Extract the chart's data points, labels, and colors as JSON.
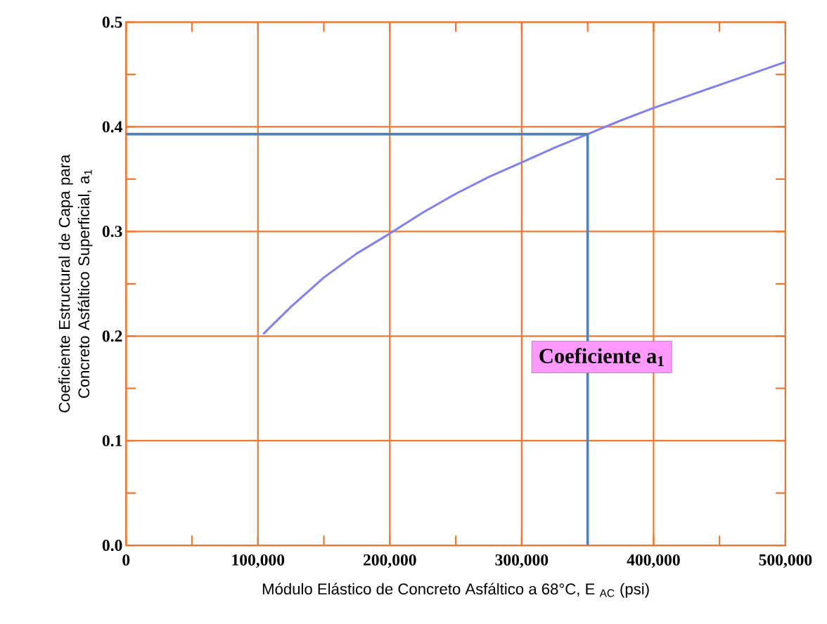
{
  "chart_data": {
    "type": "line",
    "xlabel": "Módulo Elástico de Concreto Asfáltico a 68°C, E $_{AC}$ (psi)",
    "ylabel": "Coeficiente Estructural de Capa para Concreto Asfáltico Superficial, a$_{1}$",
    "annotations": [
      "**Coeficiente a$_{1}$**"
    ],
    "series": [
      {
        "x": [
          104000,
          125000,
          150000,
          175000,
          200000,
          225000,
          250000,
          275000,
          300000,
          325000,
          350000,
          375000,
          400000,
          450000,
          500000
        ],
        "values": [
          0.202,
          0.228,
          0.256,
          0.279,
          0.298,
          0.318,
          0.336,
          0.352,
          0.366,
          0.38,
          0.393,
          0.406,
          0.418,
          0.44,
          0.462
        ],
        "color": "#8080f0"
      },
      {
        "type": "line",
        "x": [
          0,
          350000,
          350000
        ],
        "values": [
          0.393,
          0.393,
          0
        ],
        "color": "#4f81bd"
      }
    ],
    "xlim": [
      0,
      500000
    ],
    "ylim": [
      0,
      0.5
    ],
    "xticks": [
      0,
      {
        "value": 100000,
        "label": "100,000"
      },
      {
        "value": 200000,
        "label": "200,000"
      },
      {
        "value": 300000,
        "label": "300,000"
      },
      {
        "value": 400000,
        "label": "400,000"
      },
      {
        "value": 500000,
        "label": "500,000"
      }
    ],
    "yticks": [
      {
        "value": 0,
        "label": "0.0"
      },
      0.1,
      0.2,
      0.3,
      0.4,
      0.5
    ],
    "grid": true,
    "marker": "none",
    "line_style": "solid"
  }
}
